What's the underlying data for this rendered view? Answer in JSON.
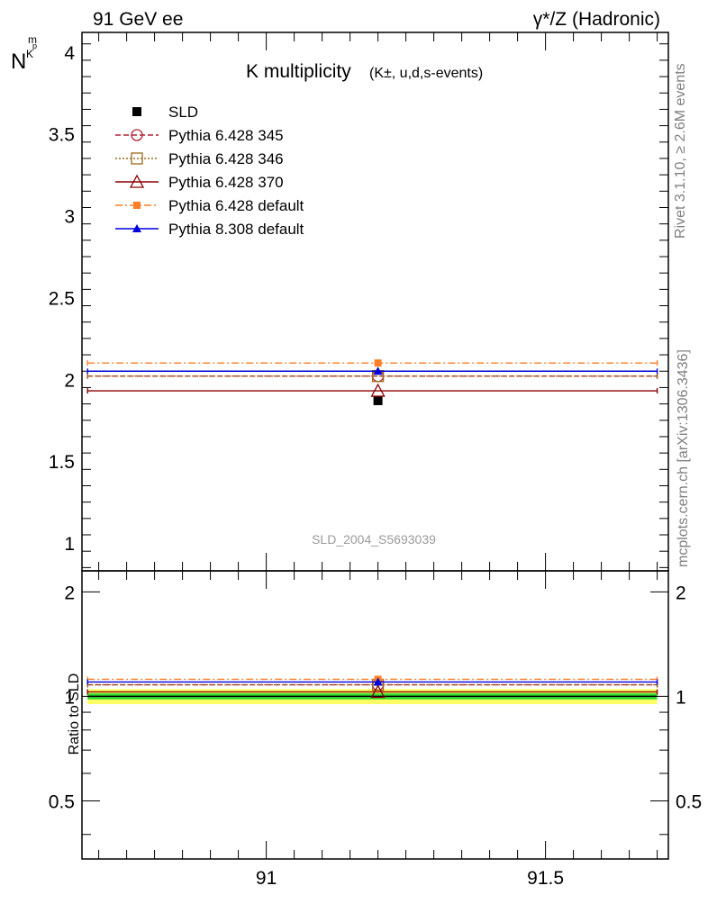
{
  "header": {
    "left": "91 GeV ee",
    "right": "γ*/Z (Hadronic)"
  },
  "side_text": {
    "rivet": "Rivet 3.1.10, ≥ 2.6M events",
    "mcplots": "mcplots.cern.ch [arXiv:1306.3436]"
  },
  "colors": {
    "SLD": "#000000",
    "p345": "#b22234",
    "p346": "#9c6a1a",
    "p370": "#8b0000",
    "p6default": "#ff7f27",
    "p8default": "#0000dd",
    "band_inner": "#33dd33",
    "band_outer": "#ffff66"
  },
  "chart_data": [
    {
      "type": "scatter",
      "panel": "main",
      "title_main": "K multiplicity",
      "title_sub": "(K±, u,d,s-events)",
      "ylabel": "N",
      "ylabel_sub": "K",
      "ylabel_sub2": "m",
      "ylabel_sup": "p",
      "watermark": "SLD_2004_S5693039",
      "xlim": [
        90.67,
        91.72
      ],
      "ylim": [
        0.83,
        4.12
      ],
      "yticks": [
        "1",
        "1.5",
        "2",
        "2.5",
        "3",
        "3.5",
        "4"
      ],
      "ytick_values": [
        1,
        1.5,
        2,
        2.5,
        3,
        3.5,
        4
      ],
      "legend_placement": "top-left",
      "series": [
        {
          "key": "SLD",
          "name": "SLD",
          "marker": "filled-square",
          "line": "none",
          "x": [
            91.2
          ],
          "y": [
            1.87
          ]
        },
        {
          "key": "p345",
          "name": "Pythia 6.428 345",
          "marker": "open-circle",
          "line": "dashed",
          "x": [
            91.2
          ],
          "y": [
            2.02
          ],
          "xrange": [
            90.68,
            91.7
          ]
        },
        {
          "key": "p346",
          "name": "Pythia 6.428 346",
          "marker": "open-square",
          "line": "dotted",
          "x": [
            91.2
          ],
          "y": [
            2.02
          ],
          "xrange": [
            90.68,
            91.7
          ]
        },
        {
          "key": "p370",
          "name": "Pythia 6.428 370",
          "marker": "open-triangle",
          "line": "solid",
          "x": [
            91.2
          ],
          "y": [
            1.93
          ],
          "xrange": [
            90.68,
            91.7
          ]
        },
        {
          "key": "p6default",
          "name": "Pythia 6.428 default",
          "marker": "filled-square",
          "line": "dashdot",
          "x": [
            91.2
          ],
          "y": [
            2.1
          ],
          "xrange": [
            90.68,
            91.7
          ]
        },
        {
          "key": "p8default",
          "name": "Pythia 8.308 default",
          "marker": "filled-triangle",
          "line": "solid",
          "x": [
            91.2
          ],
          "y": [
            2.05
          ],
          "xrange": [
            90.68,
            91.7
          ]
        }
      ]
    },
    {
      "type": "scatter",
      "panel": "ratio",
      "ylabel": "Ratio to SLD",
      "xlim": [
        90.67,
        91.72
      ],
      "ylim": [
        0.34,
        2.3
      ],
      "xticks": [
        "91",
        "91.5"
      ],
      "xtick_values": [
        91,
        91.5
      ],
      "yticks": [
        "0.5",
        "1",
        "2"
      ],
      "ytick_values": [
        0.5,
        1,
        2
      ],
      "band_inner": [
        0.98,
        1.02
      ],
      "band_outer": [
        0.95,
        1.05
      ],
      "series": [
        {
          "key": "p345",
          "y": [
            1.08
          ]
        },
        {
          "key": "p346",
          "y": [
            1.08
          ]
        },
        {
          "key": "p370",
          "y": [
            1.03
          ]
        },
        {
          "key": "p6default",
          "y": [
            1.12
          ]
        },
        {
          "key": "p8default",
          "y": [
            1.1
          ]
        }
      ]
    }
  ]
}
